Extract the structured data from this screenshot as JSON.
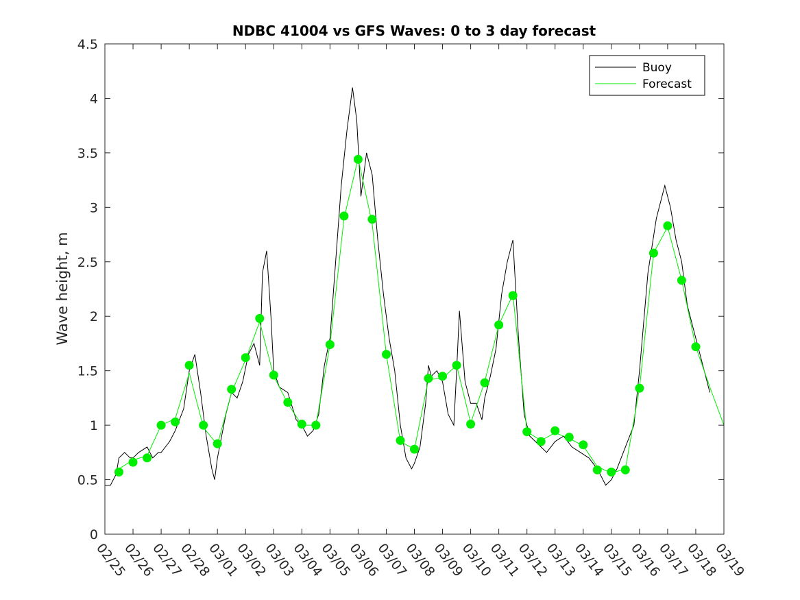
{
  "chart_data": {
    "type": "line",
    "title": "NDBC 41004 vs GFS Waves: 0 to 3 day forecast",
    "xlabel": "",
    "ylabel": "Wave height, m",
    "ylim": [
      0,
      4.5
    ],
    "xlim": [
      0,
      22
    ],
    "yticks": [
      "0",
      "0.5",
      "1",
      "1.5",
      "2",
      "2.5",
      "3",
      "3.5",
      "4",
      "4.5"
    ],
    "categories": [
      "02/25",
      "02/26",
      "02/27",
      "02/28",
      "03/01",
      "03/02",
      "03/03",
      "03/04",
      "03/05",
      "03/06",
      "03/07",
      "03/08",
      "03/09",
      "03/10",
      "03/11",
      "03/12",
      "03/13",
      "03/14",
      "03/15",
      "03/16",
      "03/17",
      "03/18",
      "03/19"
    ],
    "legend": {
      "location": "top-right",
      "entries": [
        "Buoy",
        "Forecast"
      ]
    },
    "colors": {
      "buoy": "#000000",
      "forecast": "#00ee00"
    },
    "series": [
      {
        "name": "Buoy",
        "x": [
          0,
          0.2,
          0.4,
          0.5,
          0.7,
          0.9,
          1.0,
          1.2,
          1.5,
          1.7,
          1.9,
          2.0,
          2.3,
          2.5,
          2.8,
          3.0,
          3.2,
          3.4,
          3.6,
          3.8,
          3.9,
          4.0,
          4.3,
          4.5,
          4.7,
          4.9,
          5.1,
          5.3,
          5.5,
          5.6,
          5.75,
          5.9,
          6.0,
          6.2,
          6.5,
          6.8,
          7.0,
          7.2,
          7.4,
          7.6,
          7.8,
          8.0,
          8.2,
          8.4,
          8.6,
          8.8,
          8.95,
          9.1,
          9.3,
          9.5,
          9.7,
          9.9,
          10.1,
          10.3,
          10.5,
          10.7,
          10.9,
          11.0,
          11.2,
          11.4,
          11.5,
          11.6,
          11.8,
          12.0,
          12.2,
          12.4,
          12.5,
          12.6,
          12.8,
          13.0,
          13.2,
          13.4,
          13.5,
          13.7,
          13.9,
          14.1,
          14.3,
          14.5,
          14.7,
          14.9,
          15.1,
          15.3,
          15.5,
          15.7,
          16.0,
          16.3,
          16.6,
          16.9,
          17.2,
          17.5,
          17.8,
          18.0,
          18.2,
          18.5,
          18.8,
          19.0,
          19.3,
          19.6,
          19.9,
          20.1,
          20.3,
          20.5,
          20.7,
          20.9,
          21.1,
          21.3,
          21.5
        ],
        "y": [
          0.45,
          0.45,
          0.55,
          0.7,
          0.75,
          0.7,
          0.7,
          0.75,
          0.8,
          0.7,
          0.75,
          0.75,
          0.85,
          0.95,
          1.15,
          1.5,
          1.65,
          1.3,
          0.9,
          0.6,
          0.5,
          0.7,
          1.1,
          1.3,
          1.25,
          1.4,
          1.65,
          1.75,
          1.55,
          2.4,
          2.6,
          2.0,
          1.5,
          1.35,
          1.3,
          1.05,
          1.0,
          0.9,
          0.95,
          1.1,
          1.55,
          1.8,
          2.5,
          3.2,
          3.7,
          4.1,
          3.8,
          3.1,
          3.5,
          3.3,
          2.7,
          2.2,
          1.8,
          1.5,
          1.0,
          0.7,
          0.6,
          0.65,
          0.8,
          1.2,
          1.55,
          1.45,
          1.5,
          1.4,
          1.1,
          1.0,
          1.5,
          2.05,
          1.4,
          1.2,
          1.2,
          1.05,
          1.25,
          1.45,
          1.7,
          2.2,
          2.5,
          2.7,
          1.8,
          1.1,
          0.9,
          0.85,
          0.8,
          0.75,
          0.85,
          0.9,
          0.8,
          0.75,
          0.7,
          0.6,
          0.45,
          0.5,
          0.6,
          0.8,
          1.0,
          1.5,
          2.4,
          2.9,
          3.2,
          3.0,
          2.7,
          2.5,
          2.1,
          1.9,
          1.7,
          1.5,
          1.3
        ]
      },
      {
        "name": "Forecast",
        "x": [
          0.5,
          1.0,
          1.5,
          2.0,
          2.5,
          3.0,
          3.5,
          4.0,
          4.5,
          5.0,
          5.5,
          6.0,
          6.5,
          7.0,
          7.5,
          8.0,
          8.5,
          9.0,
          9.5,
          10.0,
          10.5,
          11.0,
          11.5,
          12.0,
          12.5,
          13.0,
          13.5,
          14.0,
          14.5,
          15.0,
          15.5,
          16.0,
          16.5,
          17.0,
          17.5,
          18.0,
          18.5,
          19.0,
          19.5,
          20.0,
          20.5,
          21.0,
          21.5,
          22.0
        ],
        "y": [
          0.6,
          0.68,
          0.72,
          1.0,
          1.06,
          1.48,
          0.98,
          0.82,
          1.3,
          1.6,
          1.95,
          1.45,
          1.2,
          1.0,
          1.0,
          1.74,
          2.9,
          3.45,
          2.85,
          1.65,
          0.85,
          0.78,
          1.42,
          1.43,
          1.55,
          1.02,
          1.4,
          1.92,
          2.2,
          0.94,
          0.86,
          0.93,
          0.88,
          0.81,
          0.62,
          0.56,
          0.6,
          1.34,
          2.58,
          2.82,
          2.33,
          1.72,
          1.35,
          1.0
        ]
      }
    ],
    "markers": {
      "name": "Forecast",
      "x": [
        0.5,
        1.0,
        1.5,
        2.0,
        2.5,
        3.0,
        3.5,
        4.0,
        4.5,
        5.0,
        5.5,
        6.0,
        6.5,
        7.0,
        7.5,
        8.0,
        8.5,
        9.0,
        9.5,
        10.0,
        10.5,
        11.0,
        11.5,
        12.0,
        12.5,
        13.0,
        13.5,
        14.0,
        14.5,
        15.0,
        15.5,
        16.0,
        16.5,
        17.0,
        17.5,
        18.0,
        18.5,
        19.0,
        19.5,
        20.0,
        20.5,
        21.0
      ],
      "y": [
        0.57,
        0.66,
        0.7,
        1.0,
        1.03,
        1.55,
        1.0,
        0.83,
        1.33,
        1.62,
        1.98,
        1.46,
        1.21,
        1.01,
        1.0,
        1.74,
        2.92,
        3.44,
        2.89,
        1.65,
        0.86,
        0.78,
        1.43,
        1.45,
        1.55,
        1.01,
        1.39,
        1.92,
        2.19,
        0.94,
        0.85,
        0.95,
        0.89,
        0.82,
        0.59,
        0.57,
        0.59,
        1.34,
        2.58,
        2.83,
        2.33,
        1.72
      ]
    }
  }
}
